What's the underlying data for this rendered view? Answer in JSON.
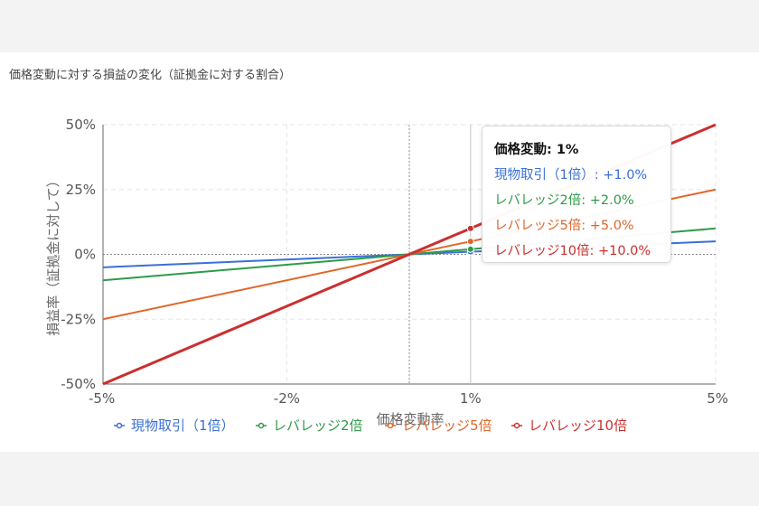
{
  "chart_data": {
    "type": "line",
    "title": "価格変動に対する損益の変化（証拠金に対する割合）",
    "xlabel": "価格変動率",
    "ylabel": "損益率（証拠金に対して）",
    "x": [
      -5,
      5
    ],
    "xlim": [
      -5,
      5
    ],
    "ylim": [
      -50,
      50
    ],
    "x_ticks": [
      "-5%",
      "-2%",
      "1%",
      "5%"
    ],
    "x_tick_values": [
      -5,
      -2,
      1,
      5
    ],
    "y_ticks": [
      "50%",
      "25%",
      "0%",
      "-25%",
      "-50%"
    ],
    "y_tick_values": [
      50,
      25,
      0,
      -25,
      -50
    ],
    "grid": true,
    "legend_position": "bottom",
    "series": [
      {
        "name": "現物取引（1倍）",
        "values": [
          -5,
          5
        ],
        "color": "#3a6fd8",
        "width": 2
      },
      {
        "name": "レバレッジ2倍",
        "values": [
          -10,
          10
        ],
        "color": "#2e9b48",
        "width": 2
      },
      {
        "name": "レバレッジ5倍",
        "values": [
          -25,
          25
        ],
        "color": "#e0662a",
        "width": 2
      },
      {
        "name": "レバレッジ10倍",
        "values": [
          -50,
          50
        ],
        "color": "#cc2f2f",
        "width": 3
      }
    ],
    "hover_x": 1,
    "tooltip": {
      "title": "価格変動: 1%",
      "rows": [
        "現物取引（1倍）: +1.0%",
        "レバレッジ2倍: +2.0%",
        "レバレッジ5倍: +5.0%",
        "レバレッジ10倍: +10.0%"
      ]
    }
  }
}
